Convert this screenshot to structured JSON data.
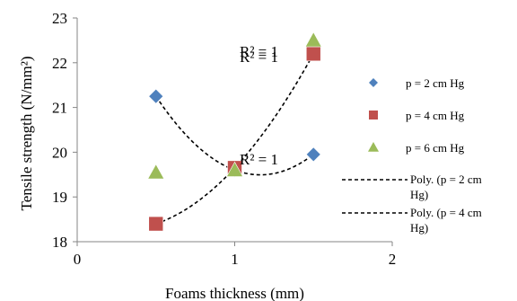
{
  "chart_data": {
    "type": "scatter",
    "title": "",
    "xlabel": "Foams thickness (mm)",
    "ylabel": "Tensile strength (N/mm²)",
    "xlim": [
      0,
      2
    ],
    "ylim": [
      18,
      23
    ],
    "x_ticks": [
      "0",
      "1",
      "2"
    ],
    "y_ticks": [
      "18",
      "19",
      "20",
      "21",
      "22",
      "23"
    ],
    "grid": false,
    "legend_position": "right",
    "series": [
      {
        "name": "p = 2 cm Hg",
        "marker": "diamond",
        "color": "#4f81bd",
        "x": [
          0.5,
          1.0,
          1.5
        ],
        "y": [
          21.25,
          19.6,
          19.95
        ],
        "trendline": "Poly. (p = 2 cm Hg)"
      },
      {
        "name": "p = 4 cm Hg",
        "marker": "square",
        "color": "#c0504d",
        "x": [
          0.5,
          1.0,
          1.5
        ],
        "y": [
          18.4,
          19.65,
          22.2
        ],
        "trendline": "Poly. (p = 4 cm Hg)"
      },
      {
        "name": "p = 6 cm Hg",
        "marker": "triangle",
        "color": "#9bbb59",
        "x": [
          0.5,
          1.0,
          1.5
        ],
        "y": [
          19.55,
          19.6,
          22.5
        ]
      }
    ],
    "annotations": [
      "R² = 1",
      "R² = 1",
      "R² = 1"
    ],
    "legend_entries": [
      {
        "label": "p = 2 cm Hg",
        "kind": "marker",
        "marker": "diamond",
        "color": "#4f81bd"
      },
      {
        "label": "p = 4 cm Hg",
        "kind": "marker",
        "marker": "square",
        "color": "#c0504d"
      },
      {
        "label": "p = 6 cm Hg",
        "kind": "marker",
        "marker": "triangle",
        "color": "#9bbb59"
      },
      {
        "label_lines": [
          "Poly. (p = 2 cm",
          "Hg)"
        ],
        "kind": "line"
      },
      {
        "label_lines": [
          "Poly. (p = 4 cm",
          "Hg)"
        ],
        "kind": "line"
      }
    ]
  }
}
